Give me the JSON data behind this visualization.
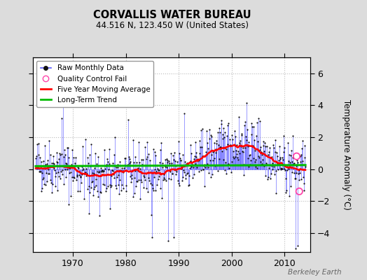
{
  "title": "CORVALLIS WATER BUREAU",
  "subtitle": "44.516 N, 123.450 W (United States)",
  "ylabel": "Temperature Anomaly (°C)",
  "watermark": "Berkeley Earth",
  "ylim": [
    -5.2,
    7.0
  ],
  "xlim": [
    1962.5,
    2014.8
  ],
  "xticks": [
    1970,
    1980,
    1990,
    2000,
    2010
  ],
  "yticks": [
    -4,
    -2,
    0,
    2,
    4,
    6
  ],
  "bg_color": "#dcdcdc",
  "plot_bg_color": "#ffffff",
  "grid_color": "#bbbbbb",
  "raw_line_color": "#5555ff",
  "raw_marker_color": "#111111",
  "ma_color": "#ff0000",
  "trend_color": "#00bb00",
  "qc_color": "#ff44aa",
  "legend_loc": "upper left",
  "start_year": 1963,
  "end_year": 2013,
  "seed": 42
}
